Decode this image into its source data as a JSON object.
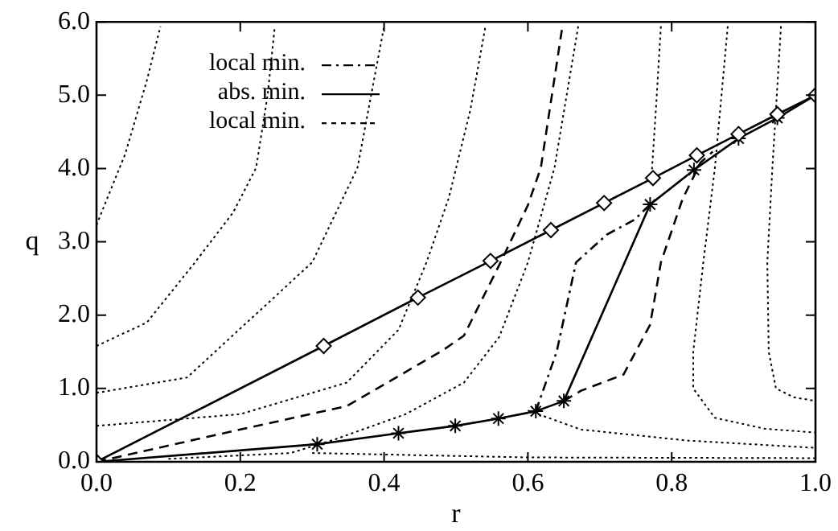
{
  "chart_data": {
    "type": "line",
    "xlabel": "r",
    "ylabel": "q",
    "xlim": [
      0,
      1
    ],
    "ylim": [
      0,
      6
    ],
    "xticks": [
      {
        "value": 0,
        "label": "0.0"
      },
      {
        "value": 0.2,
        "label": "0.2"
      },
      {
        "value": 0.4,
        "label": "0.4"
      },
      {
        "value": 0.6,
        "label": "0.6"
      },
      {
        "value": 0.8,
        "label": "0.8"
      },
      {
        "value": 1,
        "label": "1.0"
      }
    ],
    "yticks": [
      {
        "value": 0,
        "label": "0.0"
      },
      {
        "value": 1,
        "label": "1.0"
      },
      {
        "value": 2,
        "label": "2.0"
      },
      {
        "value": 3,
        "label": "3.0"
      },
      {
        "value": 4,
        "label": "4.0"
      },
      {
        "value": 5,
        "label": "5.0"
      },
      {
        "value": 6,
        "label": "6.0"
      }
    ],
    "grid": false,
    "legend": "top left",
    "series": [
      {
        "name": "local min.",
        "color": "#000000",
        "line_style": "dashdot",
        "marker": "none",
        "x": [
          0.611,
          0.64,
          0.667,
          0.71,
          0.748,
          0.77
        ],
        "values": [
          0.69,
          1.5,
          2.72,
          3.1,
          3.3,
          3.51
        ]
      },
      {
        "color": "#000000",
        "line_style": "solid",
        "marker": "diamond",
        "x": [
          0,
          0.316,
          0.447,
          0.548,
          0.632,
          0.706,
          0.774,
          0.835,
          0.893,
          0.947,
          1.0
        ],
        "values": [
          0,
          1.58,
          2.24,
          2.74,
          3.16,
          3.53,
          3.87,
          4.18,
          4.47,
          4.74,
          5.0
        ]
      },
      {
        "name": "abs. min.",
        "color": "#000000",
        "line_style": "solid",
        "marker": "cross",
        "x": [
          0,
          0.307,
          0.42,
          0.499,
          0.559,
          0.611,
          0.65,
          0.77,
          0.831,
          0.893,
          0.947,
          1.0
        ],
        "values": [
          0,
          0.24,
          0.39,
          0.49,
          0.59,
          0.69,
          0.83,
          3.51,
          3.98,
          4.41,
          4.69,
          5.0
        ]
      },
      {
        "name": "local min.",
        "color": "#000000",
        "line_style": "dashed",
        "marker": "none",
        "x": [
          0.65,
          0.674,
          0.733,
          0.77,
          0.785,
          0.815,
          0.84,
          0.857
        ],
        "values": [
          0.83,
          0.97,
          1.19,
          1.87,
          2.72,
          3.58,
          4.08,
          4.23
        ]
      },
      {
        "color": "#000000",
        "line_style": "dashed",
        "marker": "none",
        "x": [
          0,
          0.163,
          0.348,
          0.48,
          0.511,
          0.562,
          0.6,
          0.618,
          0.648
        ],
        "values": [
          0,
          0.36,
          0.76,
          1.51,
          1.72,
          2.72,
          3.5,
          4.01,
          5.94
        ]
      },
      {
        "color": "#000000",
        "line_style": "dotted",
        "marker": "none",
        "x": [
          0,
          0.04,
          0.07,
          0.089
        ],
        "values": [
          3.23,
          4.2,
          5.2,
          5.94
        ]
      },
      {
        "color": "#000000",
        "line_style": "dotted",
        "marker": "none",
        "x": [
          0,
          0.07,
          0.137,
          0.19,
          0.222,
          0.238,
          0.248
        ],
        "values": [
          1.58,
          1.9,
          2.72,
          3.4,
          4.01,
          5.0,
          5.94
        ]
      },
      {
        "color": "#000000",
        "line_style": "dotted",
        "marker": "none",
        "x": [
          0,
          0.126,
          0.3,
          0.363,
          0.4
        ],
        "values": [
          0.94,
          1.15,
          2.72,
          4.01,
          5.94
        ]
      },
      {
        "color": "#000000",
        "line_style": "dotted",
        "marker": "none",
        "x": [
          0,
          0.2,
          0.348,
          0.42,
          0.459,
          0.49,
          0.52,
          0.541
        ],
        "values": [
          0.49,
          0.65,
          1.08,
          1.8,
          2.72,
          3.6,
          4.8,
          5.94
        ]
      },
      {
        "color": "#000000",
        "line_style": "dotted",
        "marker": "none",
        "x": [
          0.1,
          0.27,
          0.33,
          0.43,
          0.511,
          0.56,
          0.6,
          0.637,
          0.67
        ],
        "values": [
          0.04,
          0.12,
          0.3,
          0.65,
          1.08,
          1.7,
          2.72,
          4.01,
          5.94
        ]
      },
      {
        "color": "#000000",
        "line_style": "dotted",
        "marker": "none",
        "x": [
          0.6,
          0.674,
          0.822,
          1.0
        ],
        "values": [
          0.7,
          0.44,
          0.29,
          0.19
        ]
      },
      {
        "color": "#000000",
        "line_style": "dotted",
        "marker": "none",
        "x": [
          0.3,
          0.6,
          1.0
        ],
        "values": [
          0.12,
          0.06,
          0.05
        ]
      },
      {
        "color": "#000000",
        "line_style": "dotted",
        "marker": "none",
        "x": [
          0.785,
          0.778,
          0.772
        ],
        "values": [
          5.94,
          4.8,
          3.9
        ]
      },
      {
        "color": "#000000",
        "line_style": "dotted",
        "marker": "none",
        "x": [
          0.878,
          0.86,
          0.844,
          0.83,
          0.83,
          0.86,
          0.93,
          1.0
        ],
        "values": [
          5.94,
          4.0,
          2.72,
          1.5,
          1.0,
          0.6,
          0.45,
          0.4
        ]
      },
      {
        "color": "#000000",
        "line_style": "dotted",
        "marker": "none",
        "x": [
          0.952,
          0.94,
          0.933,
          0.935,
          0.945,
          0.97,
          1.0
        ],
        "values": [
          5.94,
          4.0,
          2.72,
          1.5,
          1.0,
          0.88,
          0.83
        ]
      }
    ]
  }
}
